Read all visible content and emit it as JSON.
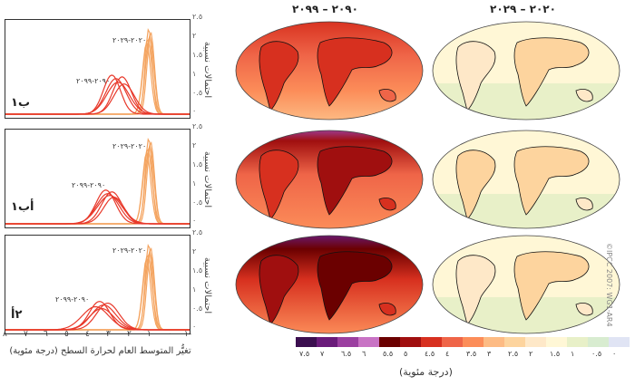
{
  "chart_data": {
    "type": "line",
    "title": "",
    "xlabel": "تغيُّر المتوسط العام لحرارة السطح (درجة مئوية)",
    "ylabel": "احتمالات نسبية",
    "x_ticks": [
      "٨",
      "٧",
      "٦",
      "٥",
      "٤",
      "٣",
      "٢",
      "١",
      "٠",
      "١-"
    ],
    "y_ticks": [
      "٢.٥",
      "٢",
      "١.٥",
      "١",
      "٠.٥",
      "٠"
    ],
    "xlim": [
      -1,
      8
    ],
    "panels": [
      {
        "label": "ب١",
        "annotations": [
          "٢٠٢٠-٢٠٢٩",
          "٢٠٩٠-٢٠٩٩"
        ],
        "series": [
          {
            "name": "2020-2029",
            "color": "#f4a460",
            "peaks": [
              0.9,
              0.95,
              1.0,
              1.05,
              1.1
            ],
            "heights": [
              2.3,
              2.2,
              2.4,
              2.1,
              2.0
            ],
            "widths": [
              0.18,
              0.2,
              0.17,
              0.22,
              0.2
            ]
          },
          {
            "name": "2090-2099",
            "color": "#e8392b",
            "peaks": [
              2.3,
              2.6,
              2.8,
              2.5,
              2.2
            ],
            "heights": [
              1.05,
              1.0,
              1.1,
              0.9,
              0.85
            ],
            "widths": [
              0.45,
              0.5,
              0.42,
              0.55,
              0.5
            ]
          }
        ]
      },
      {
        "label": "أب١",
        "annotations": [
          "٢٠٢٠-٢٠٢٩",
          "٢٠٩٠-٢٠٩٩"
        ],
        "series": [
          {
            "name": "2020-2029",
            "color": "#f4a460",
            "peaks": [
              0.9,
              0.95,
              1.0,
              1.05,
              1.1
            ],
            "heights": [
              2.3,
              2.2,
              2.4,
              2.1,
              2.0
            ],
            "widths": [
              0.18,
              0.2,
              0.17,
              0.22,
              0.2
            ]
          },
          {
            "name": "2090-2099",
            "color": "#e8392b",
            "peaks": [
              2.8,
              3.0,
              3.1,
              2.9,
              2.7
            ],
            "heights": [
              0.9,
              0.85,
              0.95,
              0.8,
              0.75
            ],
            "widths": [
              0.5,
              0.55,
              0.48,
              0.6,
              0.5
            ]
          }
        ]
      },
      {
        "label": "٢أ",
        "annotations": [
          "٢٠٢٠-٢٠٢٩",
          "٢٠٩٠-٢٠٩٩"
        ],
        "series": [
          {
            "name": "2020-2029",
            "color": "#f4a460",
            "peaks": [
              0.9,
              0.95,
              1.0,
              1.05,
              1.1
            ],
            "heights": [
              2.3,
              2.2,
              2.4,
              2.1,
              2.0
            ],
            "widths": [
              0.18,
              0.2,
              0.17,
              0.22,
              0.2
            ]
          },
          {
            "name": "2090-2099",
            "color": "#e8392b",
            "peaks": [
              3.0,
              3.2,
              3.4,
              3.6,
              3.3
            ],
            "heights": [
              0.75,
              0.7,
              0.8,
              0.65,
              0.6
            ],
            "widths": [
              0.55,
              0.6,
              0.5,
              0.65,
              0.6
            ]
          }
        ]
      }
    ],
    "maps": {
      "column_headers": [
        "٢٠٢٠ – ٢٠٢٩",
        "٢٠٩٠ – ٢٠٩٩"
      ],
      "colorbar": {
        "labels": [
          "٧.٥",
          "٧",
          "٦.٥",
          "٦",
          "٥.٥",
          "٥",
          "٤.٥",
          "٤",
          "٣.٥",
          "٣",
          "٢.٥",
          "٢",
          "١.٥",
          "١",
          "٠.٥",
          "٠"
        ],
        "colors": [
          "#3b0f4f",
          "#6a1b7a",
          "#9b3fa0",
          "#c873c4",
          "#6b0000",
          "#a00f0f",
          "#d7301f",
          "#ef6548",
          "#fc8d59",
          "#fdbb84",
          "#fdd49e",
          "#fee8c8",
          "#fff7d6",
          "#e8f0c8",
          "#d8ecd0",
          "#e0e4f4"
        ],
        "units": "(درجة مئوية)"
      }
    }
  },
  "credit": "©IPCC 2007: WG1-AR4"
}
